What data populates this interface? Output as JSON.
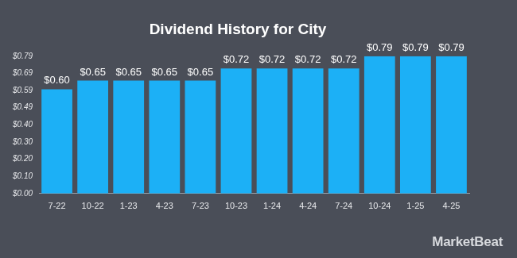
{
  "chart_data": {
    "type": "bar",
    "title": "Dividend History for City",
    "categories": [
      "7-22",
      "10-22",
      "1-23",
      "4-23",
      "7-23",
      "10-23",
      "1-24",
      "4-24",
      "7-24",
      "10-24",
      "1-25",
      "4-25"
    ],
    "values": [
      0.6,
      0.65,
      0.65,
      0.65,
      0.65,
      0.72,
      0.72,
      0.72,
      0.72,
      0.79,
      0.79,
      0.79
    ],
    "value_labels": [
      "$0.60",
      "$0.65",
      "$0.65",
      "$0.65",
      "$0.65",
      "$0.72",
      "$0.72",
      "$0.72",
      "$0.72",
      "$0.79",
      "$0.79",
      "$0.79"
    ],
    "data_labels": true,
    "color": "#1cb0f6",
    "ylim": [
      0,
      0.79
    ],
    "yticks": [
      {
        "value": 0,
        "label": "$0.00"
      },
      {
        "value": 0.09875,
        "label": "$0.10"
      },
      {
        "value": 0.1975,
        "label": "$0.20"
      },
      {
        "value": 0.29625,
        "label": "$0.30"
      },
      {
        "value": 0.395,
        "label": "$0.40"
      },
      {
        "value": 0.49375,
        "label": "$0.49"
      },
      {
        "value": 0.5925,
        "label": "$0.59"
      },
      {
        "value": 0.69125,
        "label": "$0.69"
      },
      {
        "value": 0.79,
        "label": "$0.79"
      }
    ],
    "grid": false,
    "annotations": [
      "MarketBeat"
    ]
  }
}
